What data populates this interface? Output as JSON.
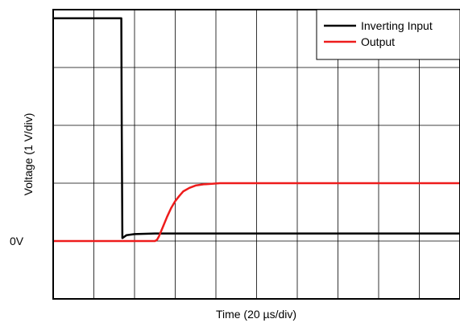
{
  "chart_data": {
    "type": "line",
    "title": "",
    "xlabel": "Time (20 µs/div)",
    "ylabel": "Voltage (1 V/div)",
    "xlim": [
      0,
      200
    ],
    "ylim": [
      -1,
      4
    ],
    "x_divisions": 10,
    "y_divisions": 5,
    "y_tick_labels": [
      {
        "value": 0,
        "label": "0V"
      }
    ],
    "grid": true,
    "legend": {
      "position": "top-right"
    },
    "series": [
      {
        "name": "Inverting Input",
        "color": "#000000",
        "x": [
          0,
          33.5,
          33.7,
          34,
          36,
          40,
          50,
          60,
          80,
          100,
          140,
          200
        ],
        "y": [
          3.85,
          3.85,
          2.0,
          0.05,
          0.1,
          0.12,
          0.13,
          0.13,
          0.13,
          0.13,
          0.13,
          0.13
        ]
      },
      {
        "name": "Output",
        "color": "#ee1c1c",
        "x": [
          0,
          50,
          51,
          52,
          54,
          56,
          58,
          60,
          62,
          64,
          67,
          70,
          74,
          78,
          82,
          90,
          100,
          140,
          200
        ],
        "y": [
          0,
          0,
          0.02,
          0.08,
          0.25,
          0.42,
          0.57,
          0.69,
          0.78,
          0.86,
          0.92,
          0.96,
          0.98,
          0.99,
          1.0,
          1.0,
          1.0,
          1.0,
          1.0
        ]
      }
    ]
  }
}
